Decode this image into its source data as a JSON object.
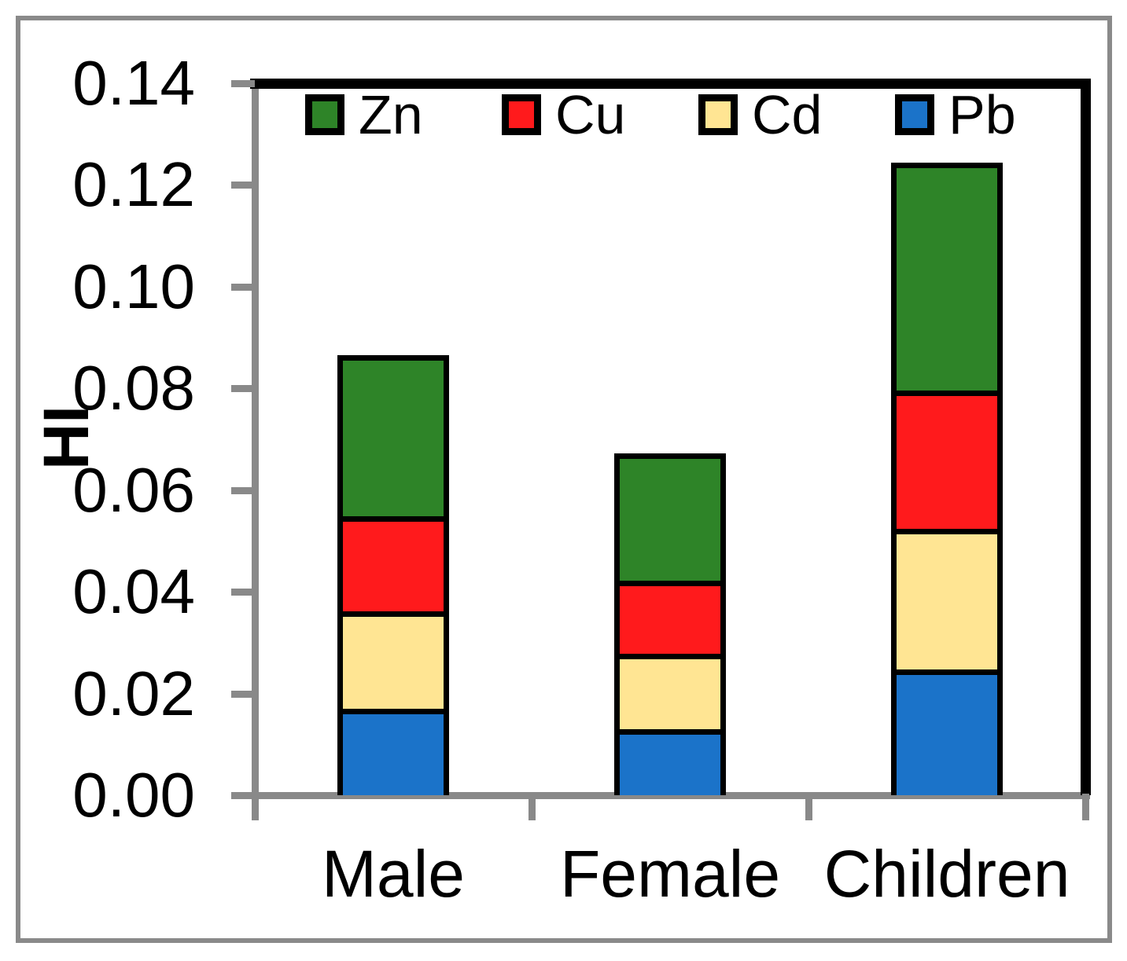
{
  "figure": {
    "background": "#FFFFFF",
    "outer_border_color": "#8A8A8A",
    "axis_color": "#898989",
    "bar_outline_color": "#000000",
    "text_color": "#000000"
  },
  "chart_data": {
    "type": "bar",
    "stacked": true,
    "title": "",
    "xlabel": "",
    "ylabel": "HI",
    "ylim": [
      0,
      0.14
    ],
    "ytick_step": 0.02,
    "ytick_labels": [
      "0.00",
      "0.02",
      "0.04",
      "0.06",
      "0.08",
      "0.10",
      "0.12",
      "0.14"
    ],
    "grid": false,
    "legend_position": "top-inside",
    "legend_order": [
      "Zn",
      "Cu",
      "Cd",
      "Pb"
    ],
    "stack_order_bottom_to_top": [
      "Pb",
      "Cd",
      "Cu",
      "Zn"
    ],
    "categories": [
      "Male",
      "Female",
      "Children"
    ],
    "series": [
      {
        "name": "Pb",
        "color": "#1B73C9",
        "values": [
          0.017,
          0.0129,
          0.0247
        ]
      },
      {
        "name": "Cd",
        "color": "#FFE593",
        "values": [
          0.0192,
          0.0148,
          0.0277
        ]
      },
      {
        "name": "Cu",
        "color": "#FF1A1C",
        "values": [
          0.0187,
          0.0145,
          0.0271
        ]
      },
      {
        "name": "Zn",
        "color": "#2E8428",
        "values": [
          0.0306,
          0.0239,
          0.0438
        ]
      }
    ],
    "stack_totals": [
      0.0855,
      0.0661,
      0.1233
    ]
  }
}
